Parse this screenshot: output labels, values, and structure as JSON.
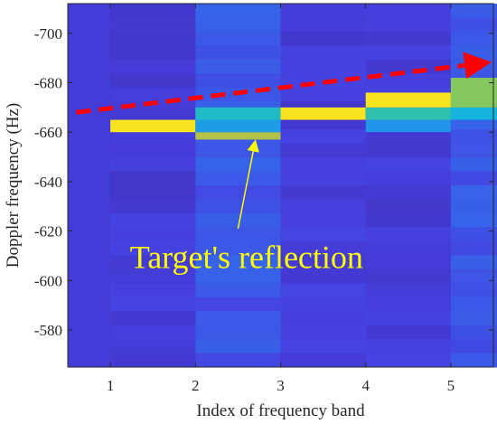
{
  "chart_data": {
    "type": "heatmap",
    "title": "",
    "xlabel": "Index of frequency band",
    "ylabel": "Doppler frequency (Hz)",
    "x_categories": [
      "1",
      "2",
      "3",
      "4",
      "5"
    ],
    "y_ticks": [
      -700,
      -680,
      -660,
      -640,
      -620,
      -600,
      -580
    ],
    "y_axis_direction": "reversed (-700 at top, -565 at bottom)",
    "ylim": [
      -712,
      -565
    ],
    "grid": false,
    "colormap": "parula",
    "color_range": [
      0,
      1
    ],
    "cells": [
      {
        "band": 1,
        "doppler_range": [
          -665,
          -660
        ],
        "level": 0.95
      },
      {
        "band": 2,
        "doppler_range": [
          -660,
          -657
        ],
        "level": 0.78
      },
      {
        "band": 2,
        "doppler_range": [
          -665,
          -660
        ],
        "level": 0.38
      },
      {
        "band": 2,
        "doppler_range": [
          -670,
          -665
        ],
        "level": 0.5
      },
      {
        "band": 3,
        "doppler_range": [
          -670,
          -665
        ],
        "level": 0.95
      },
      {
        "band": 4,
        "doppler_range": [
          -665,
          -660
        ],
        "level": 0.35
      },
      {
        "band": 4,
        "doppler_range": [
          -670,
          -665
        ],
        "level": 0.55
      },
      {
        "band": 4,
        "doppler_range": [
          -676,
          -670
        ],
        "level": 0.95
      },
      {
        "band": 5,
        "doppler_range": [
          -670,
          -665
        ],
        "level": 0.45
      },
      {
        "band": 5,
        "doppler_range": [
          -682,
          -670
        ],
        "level": 0.72
      }
    ],
    "annotations": [
      {
        "text": "Target's reflection",
        "color": "#ffff00",
        "x": 2.6,
        "y": -605
      },
      {
        "type": "arrow",
        "color": "#ffff00",
        "from": [
          2.5,
          -621
        ],
        "to": [
          2.7,
          -656
        ]
      },
      {
        "type": "dashed-arrow",
        "color": "#ff0000",
        "from": [
          0.6,
          -668
        ],
        "to": [
          5.4,
          -688
        ]
      }
    ]
  }
}
